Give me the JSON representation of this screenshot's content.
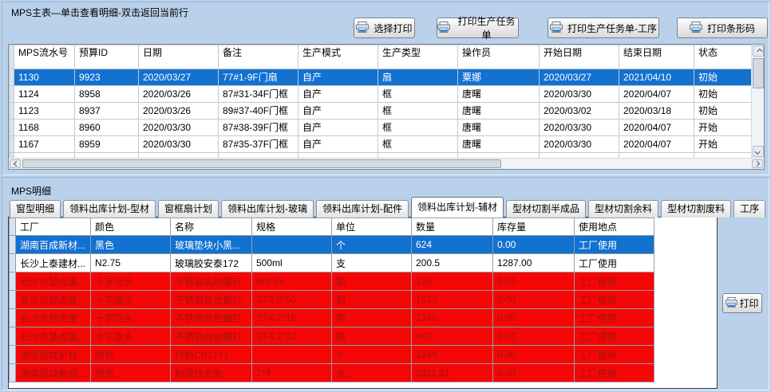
{
  "master": {
    "title": "MPS主表—单击查看明细-双击返回当前行",
    "buttons": {
      "select_print": "选择打印",
      "print_task": "打印生产任务单",
      "print_task_process": "打印生产任务单-工序",
      "print_barcode": "打印条形码"
    },
    "columns": [
      "MPS流水号",
      "预算ID",
      "日期",
      "备注",
      "生产模式",
      "生产类型",
      "操作员",
      "开始日期",
      "结束日期",
      "状态"
    ],
    "rows": [
      {
        "selected": true,
        "cells": [
          "1130",
          "9923",
          "2020/03/27",
          "77#1-9F门扇",
          "自产",
          "扇",
          "粟娜",
          "2020/03/27",
          "2021/04/10",
          "初始"
        ]
      },
      {
        "selected": false,
        "cells": [
          "1124",
          "8958",
          "2020/03/26",
          "87#31-34F门框",
          "自产",
          "框",
          "唐曙",
          "2020/03/30",
          "2020/04/07",
          "初始"
        ]
      },
      {
        "selected": false,
        "cells": [
          "1123",
          "8937",
          "2020/03/26",
          "89#37-40F门框",
          "自产",
          "框",
          "唐曙",
          "2020/03/02",
          "2020/03/18",
          "初始"
        ]
      },
      {
        "selected": false,
        "cells": [
          "1168",
          "8960",
          "2020/03/30",
          "87#38-39F门框",
          "自产",
          "框",
          "唐曙",
          "2020/03/30",
          "2020/04/07",
          "开始"
        ]
      },
      {
        "selected": false,
        "cells": [
          "1167",
          "8959",
          "2020/03/30",
          "87#35-37F门框",
          "自产",
          "框",
          "唐曙",
          "2020/03/30",
          "2020/04/07",
          "开始"
        ]
      }
    ]
  },
  "detail": {
    "label": "MPS明细",
    "tabs": [
      "窗型明细",
      "领料出库计划-型材",
      "窗框扇计划",
      "领料出库计划-玻璃",
      "领料出库计划-配件",
      "领料出库计划-辅材",
      "型材切割半成品",
      "型材切割余料",
      "型材切割废料",
      "工序"
    ],
    "active_tab_index": 5,
    "columns": [
      "工厂",
      "颜色",
      "名称",
      "规格",
      "单位",
      "数量",
      "库存量",
      "使用地点"
    ],
    "rows": [
      {
        "state": "selected",
        "cells": [
          "湖南百成新材...",
          "黑色",
          "玻璃垫块小黑...",
          "",
          "个",
          "624",
          "0.00",
          "工厂使用"
        ]
      },
      {
        "state": "normal",
        "cells": [
          "长沙上泰建材...",
          "N2.75",
          "玻璃胶安泰172",
          "500ml",
          "支",
          "200.5",
          "1287.00",
          "工厂使用"
        ]
      },
      {
        "state": "alert",
        "cells": [
          "长沙市慧虎建...",
          "十字沉头",
          "不锈钢机制螺钉",
          "M4*25",
          "颗",
          "216",
          "0.00",
          "工厂使用"
        ]
      },
      {
        "state": "alert",
        "cells": [
          "长沙市慧虎建...",
          "十字盘头",
          "不锈钢自攻螺钉",
          "ST3.9*50",
          "颗",
          "1632",
          "0.00",
          "工厂使用"
        ]
      },
      {
        "state": "alert",
        "cells": [
          "长沙市慧虎建...",
          "十字沉头",
          "不锈钢自攻螺钉",
          "ST4.2*16",
          "颗",
          "1248",
          "0.00",
          "工厂使用"
        ]
      },
      {
        "state": "alert",
        "cells": [
          "长沙市慧虎建...",
          "十字盘头",
          "不锈钢自攻螺钉",
          "ST4.2*32",
          "颗",
          "840",
          "0.00",
          "工厂使用"
        ]
      },
      {
        "state": "alert",
        "cells": [
          "湖南百成新材...",
          "原色",
          "付档CB1771",
          "",
          "个",
          "1248",
          "0.00",
          "工厂使用"
        ]
      },
      {
        "state": "alert",
        "cells": [
          "湖南百成新材...",
          "原色",
          "利得佳毛条",
          "7*4",
          "米",
          "2911.81",
          "0.00",
          "工厂使用"
        ]
      }
    ],
    "print_button": "打印"
  },
  "colors": {
    "background": "#b9d1ea",
    "selection": "#1371d0",
    "alert_row": "#f60606",
    "alert_text": "#a31212"
  }
}
